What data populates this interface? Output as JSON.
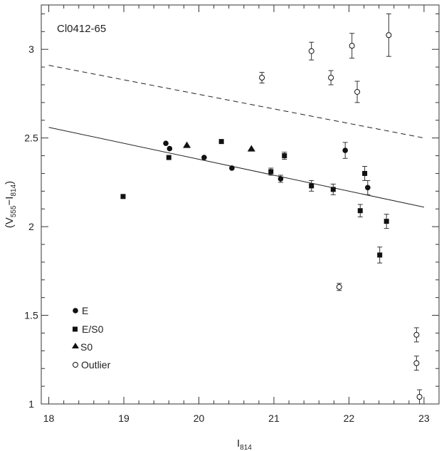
{
  "chart_data": {
    "type": "scatter",
    "annotation": "Cl0412-65",
    "xlabel": {
      "main": "I",
      "sub": "814"
    },
    "ylabel": {
      "open": "(V",
      "sub1": "555",
      "mid": "−I",
      "sub2": "814",
      "close": ")"
    },
    "xlim": [
      17.9,
      23.2
    ],
    "ylim": [
      1.0,
      3.25
    ],
    "xticks": [
      18,
      19,
      20,
      21,
      22,
      23
    ],
    "yticks": [
      1,
      1.5,
      2,
      2.5,
      3
    ],
    "ytick_labels": [
      "1",
      "1.5",
      "2",
      "2.5",
      "3"
    ],
    "series": [
      {
        "name": "E",
        "marker": "filled-circle",
        "points": [
          {
            "x": 19.56,
            "y": 2.47,
            "err": 0
          },
          {
            "x": 19.61,
            "y": 2.44,
            "err": 0
          },
          {
            "x": 20.07,
            "y": 2.39,
            "err": 0
          },
          {
            "x": 20.44,
            "y": 2.33,
            "err": 0
          },
          {
            "x": 21.09,
            "y": 2.27,
            "err": 0.02
          },
          {
            "x": 21.95,
            "y": 2.43,
            "err": 0.045
          },
          {
            "x": 22.25,
            "y": 2.22,
            "err": 0.04
          }
        ]
      },
      {
        "name": "E/S0",
        "marker": "filled-square",
        "points": [
          {
            "x": 18.99,
            "y": 2.17,
            "err": 0
          },
          {
            "x": 19.6,
            "y": 2.39,
            "err": 0
          },
          {
            "x": 20.3,
            "y": 2.48,
            "err": 0
          },
          {
            "x": 20.96,
            "y": 2.31,
            "err": 0.02
          },
          {
            "x": 21.14,
            "y": 2.4,
            "err": 0.02
          },
          {
            "x": 21.5,
            "y": 2.23,
            "err": 0.03
          },
          {
            "x": 21.79,
            "y": 2.21,
            "err": 0.03
          },
          {
            "x": 22.15,
            "y": 2.09,
            "err": 0.035
          },
          {
            "x": 22.21,
            "y": 2.3,
            "err": 0.04
          },
          {
            "x": 22.41,
            "y": 1.84,
            "err": 0.045
          },
          {
            "x": 22.5,
            "y": 2.03,
            "err": 0.04
          }
        ]
      },
      {
        "name": "S0",
        "marker": "filled-triangle",
        "points": [
          {
            "x": 19.84,
            "y": 2.46,
            "err": 0
          },
          {
            "x": 20.7,
            "y": 2.44,
            "err": 0
          }
        ]
      },
      {
        "name": "Outlier",
        "marker": "open-circle",
        "points": [
          {
            "x": 20.84,
            "y": 2.84,
            "err": 0.03
          },
          {
            "x": 21.5,
            "y": 2.99,
            "err": 0.05
          },
          {
            "x": 21.76,
            "y": 2.84,
            "err": 0.04
          },
          {
            "x": 21.87,
            "y": 1.66,
            "err": 0.02
          },
          {
            "x": 22.04,
            "y": 3.02,
            "err": 0.07
          },
          {
            "x": 22.11,
            "y": 2.76,
            "err": 0.06
          },
          {
            "x": 22.53,
            "y": 3.08,
            "err": 0.12
          },
          {
            "x": 22.9,
            "y": 1.39,
            "err": 0.04
          },
          {
            "x": 22.9,
            "y": 1.23,
            "err": 0.04
          },
          {
            "x": 22.94,
            "y": 1.04,
            "err": 0.04
          }
        ]
      }
    ],
    "lines": [
      {
        "style": "solid",
        "from": [
          18.0,
          2.56
        ],
        "to": [
          23.0,
          2.11
        ]
      },
      {
        "style": "dashed",
        "from": [
          18.0,
          2.91
        ],
        "to": [
          23.0,
          2.5
        ]
      }
    ],
    "legend_position": "bottom-left",
    "grid": false
  }
}
